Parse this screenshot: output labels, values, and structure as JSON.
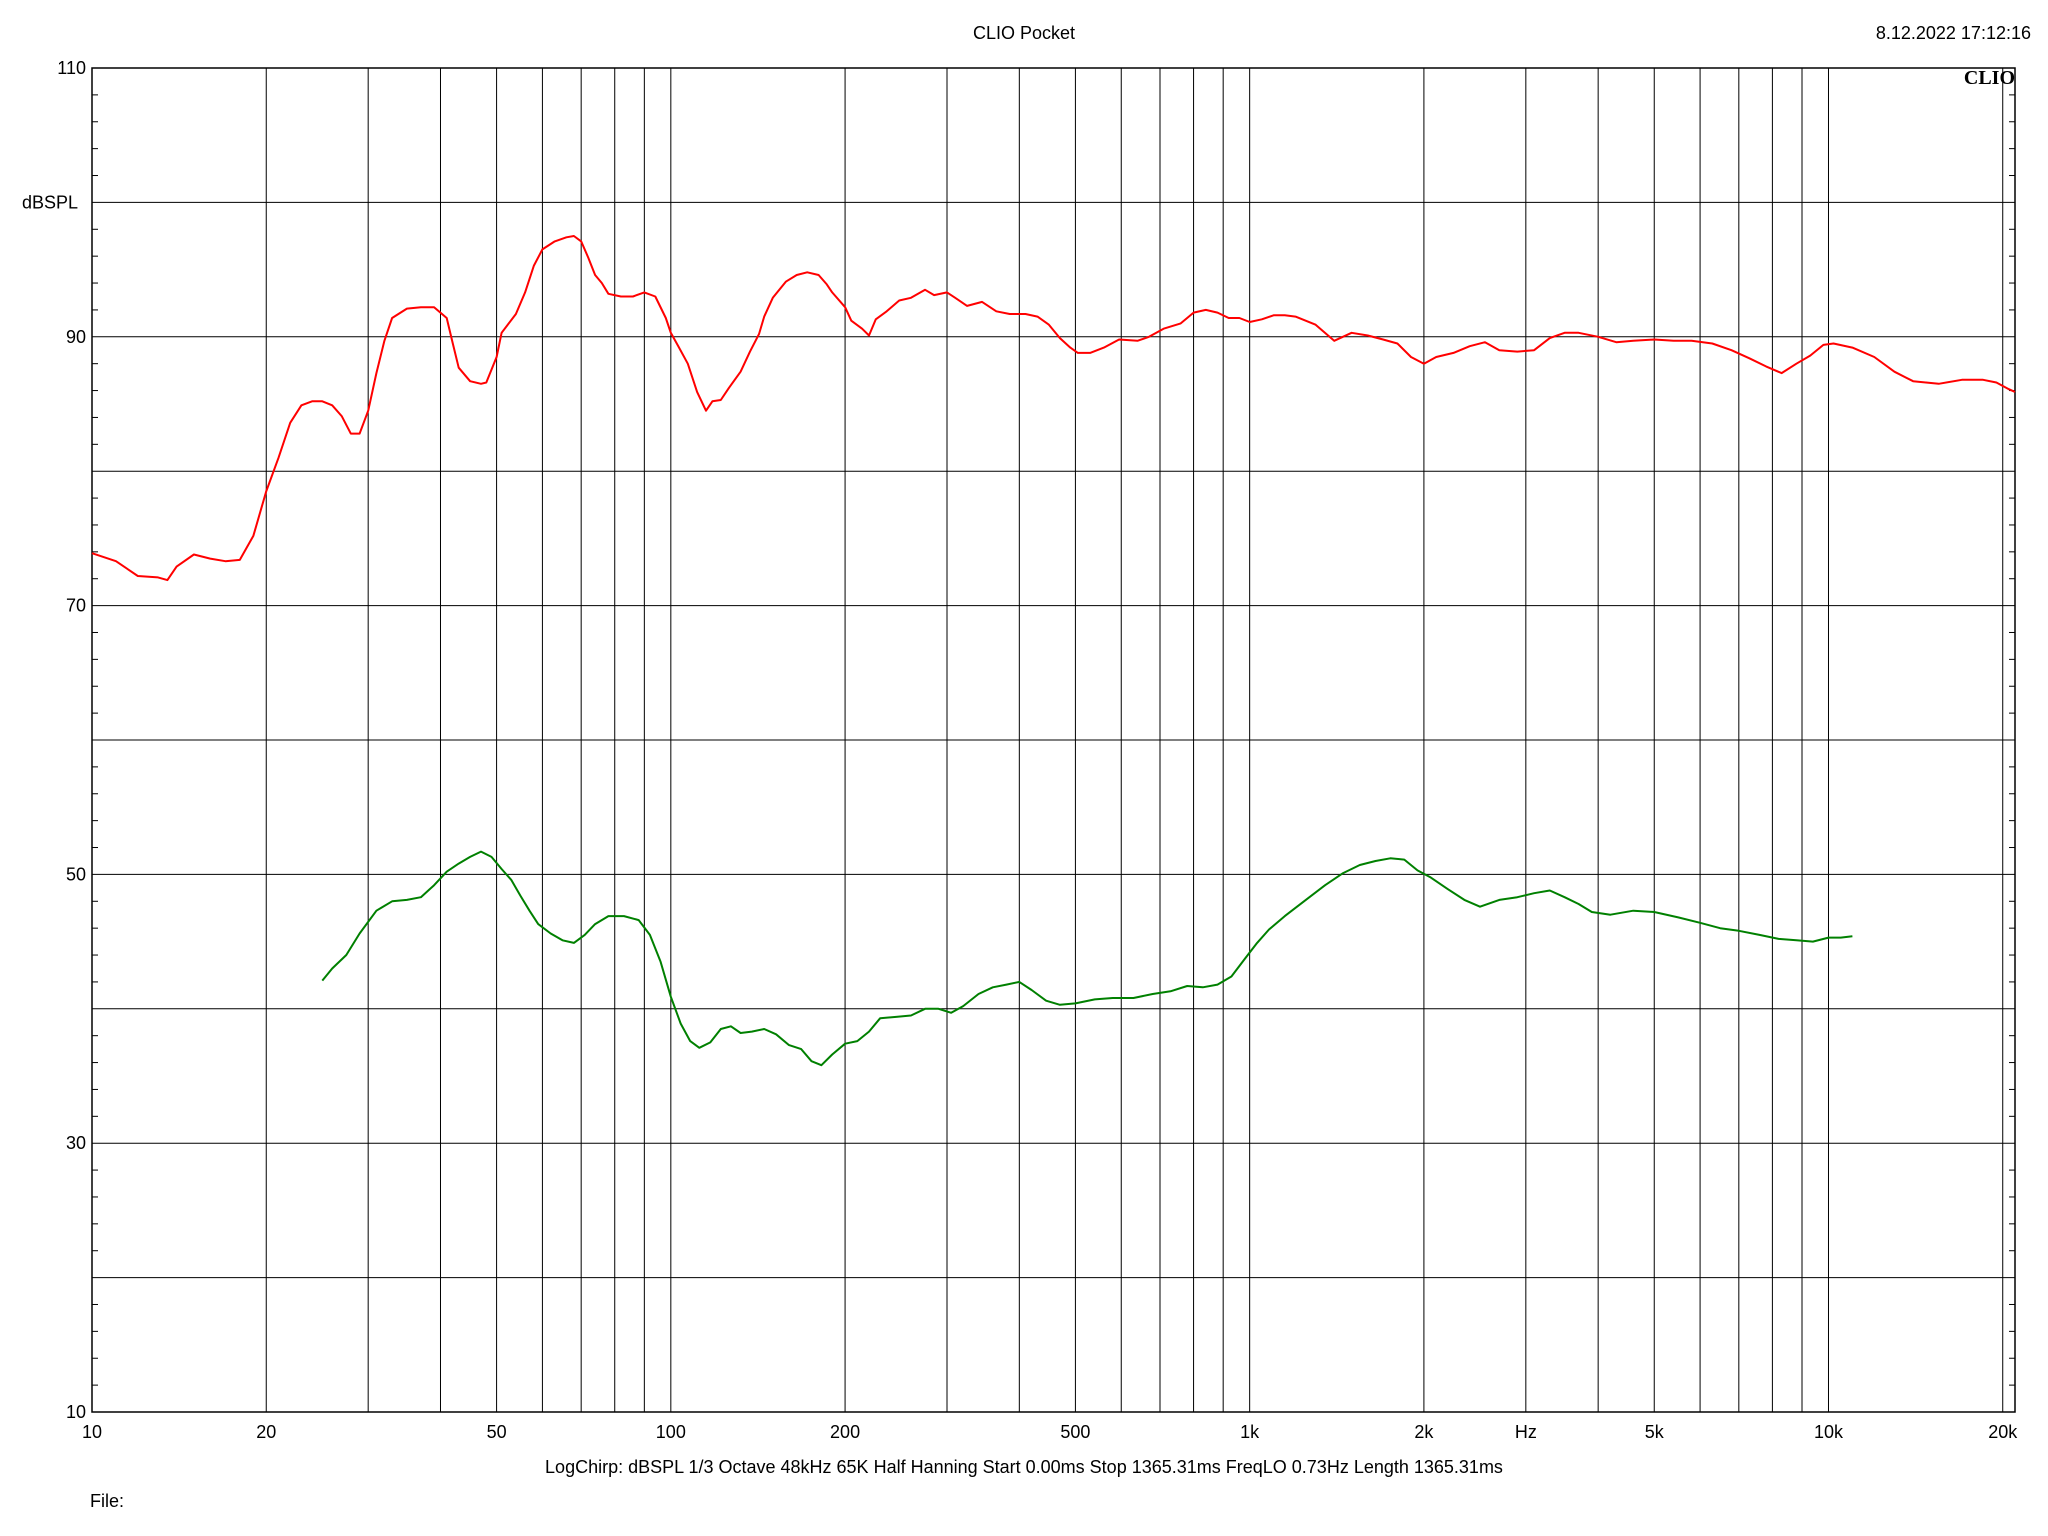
{
  "header": {
    "title": "CLIO Pocket",
    "timestamp": "8.12.2022 17:12:16"
  },
  "logo_text": "CLIO",
  "footer": {
    "params": "LogChirp:  dBSPL   1/3 Octave   48kHz   65K   Half Hanning   Start 0.00ms    Stop 1365.31ms    FreqLO 0.73Hz    Length 1365.31ms",
    "file_label": "File:"
  },
  "colors": {
    "background": "#ffffff",
    "grid": "#000000",
    "series_red": "#ff0000",
    "series_green": "#008000"
  },
  "chart_data": {
    "type": "line",
    "xscale": "log",
    "xlim": [
      10,
      21000
    ],
    "ylim": [
      10,
      110
    ],
    "ylabel": "dBSPL",
    "xlabel": "Hz",
    "grid": true,
    "y_ticks": [
      {
        "value": 110,
        "label": "110"
      },
      {
        "value": 90,
        "label": "90"
      },
      {
        "value": 70,
        "label": "70"
      },
      {
        "value": 50,
        "label": "50"
      },
      {
        "value": 30,
        "label": "30"
      },
      {
        "value": 10,
        "label": "10"
      }
    ],
    "x_ticks": [
      {
        "value": 10,
        "label": "10"
      },
      {
        "value": 20,
        "label": "20"
      },
      {
        "value": 50,
        "label": "50"
      },
      {
        "value": 100,
        "label": "100"
      },
      {
        "value": 200,
        "label": "200"
      },
      {
        "value": 500,
        "label": "500"
      },
      {
        "value": 1000,
        "label": "1k"
      },
      {
        "value": 2000,
        "label": "2k"
      },
      {
        "value": 5000,
        "label": "5k"
      },
      {
        "value": 10000,
        "label": "10k"
      },
      {
        "value": 20000,
        "label": "20k"
      }
    ],
    "series": [
      {
        "color": "#ff0000",
        "points": [
          [
            10,
            73.9
          ],
          [
            11,
            73.3
          ],
          [
            12,
            72.2
          ],
          [
            13,
            72.1
          ],
          [
            13.5,
            71.9
          ],
          [
            14,
            72.9
          ],
          [
            15,
            73.8
          ],
          [
            16,
            73.5
          ],
          [
            17,
            73.3
          ],
          [
            18,
            73.4
          ],
          [
            19,
            75.2
          ],
          [
            20,
            78.5
          ],
          [
            21,
            81.0
          ],
          [
            22,
            83.6
          ],
          [
            23,
            84.9
          ],
          [
            24,
            85.2
          ],
          [
            25,
            85.2
          ],
          [
            26,
            84.9
          ],
          [
            27,
            84.1
          ],
          [
            28,
            82.8
          ],
          [
            29,
            82.8
          ],
          [
            30,
            84.5
          ],
          [
            31,
            87.3
          ],
          [
            32,
            89.7
          ],
          [
            33,
            91.4
          ],
          [
            35,
            92.1
          ],
          [
            37,
            92.2
          ],
          [
            39,
            92.2
          ],
          [
            41,
            91.4
          ],
          [
            42,
            89.5
          ],
          [
            43,
            87.7
          ],
          [
            45,
            86.7
          ],
          [
            47,
            86.5
          ],
          [
            48,
            86.6
          ],
          [
            50,
            88.5
          ],
          [
            51,
            90.3
          ],
          [
            54,
            91.7
          ],
          [
            56,
            93.3
          ],
          [
            58,
            95.3
          ],
          [
            60,
            96.5
          ],
          [
            63,
            97.1
          ],
          [
            66,
            97.4
          ],
          [
            68,
            97.5
          ],
          [
            70,
            97.1
          ],
          [
            72,
            95.9
          ],
          [
            74,
            94.6
          ],
          [
            76,
            94.0
          ],
          [
            78,
            93.2
          ],
          [
            82,
            93.0
          ],
          [
            86,
            93.0
          ],
          [
            90,
            93.3
          ],
          [
            94,
            93.0
          ],
          [
            98,
            91.4
          ],
          [
            100,
            90.3
          ],
          [
            103,
            89.3
          ],
          [
            107,
            88.0
          ],
          [
            111,
            85.9
          ],
          [
            115,
            84.5
          ],
          [
            118,
            85.2
          ],
          [
            122,
            85.3
          ],
          [
            126,
            86.2
          ],
          [
            132,
            87.4
          ],
          [
            137,
            88.9
          ],
          [
            142,
            90.2
          ],
          [
            145,
            91.5
          ],
          [
            150,
            92.9
          ],
          [
            158,
            94.1
          ],
          [
            165,
            94.6
          ],
          [
            172,
            94.8
          ],
          [
            180,
            94.6
          ],
          [
            186,
            93.9
          ],
          [
            190,
            93.3
          ],
          [
            200,
            92.2
          ],
          [
            205,
            91.2
          ],
          [
            214,
            90.6
          ],
          [
            220,
            90.1
          ],
          [
            226,
            91.3
          ],
          [
            236,
            91.9
          ],
          [
            248,
            92.7
          ],
          [
            260,
            92.9
          ],
          [
            275,
            93.5
          ],
          [
            285,
            93.1
          ],
          [
            300,
            93.3
          ],
          [
            310,
            92.9
          ],
          [
            325,
            92.3
          ],
          [
            345,
            92.6
          ],
          [
            365,
            91.9
          ],
          [
            385,
            91.7
          ],
          [
            410,
            91.7
          ],
          [
            430,
            91.5
          ],
          [
            450,
            90.9
          ],
          [
            470,
            89.9
          ],
          [
            490,
            89.2
          ],
          [
            505,
            88.8
          ],
          [
            530,
            88.8
          ],
          [
            560,
            89.2
          ],
          [
            595,
            89.8
          ],
          [
            640,
            89.7
          ],
          [
            670,
            90.0
          ],
          [
            710,
            90.6
          ],
          [
            760,
            91.0
          ],
          [
            800,
            91.8
          ],
          [
            840,
            92.0
          ],
          [
            880,
            91.8
          ],
          [
            920,
            91.4
          ],
          [
            960,
            91.4
          ],
          [
            1000,
            91.1
          ],
          [
            1050,
            91.3
          ],
          [
            1100,
            91.6
          ],
          [
            1150,
            91.6
          ],
          [
            1200,
            91.5
          ],
          [
            1300,
            90.9
          ],
          [
            1400,
            89.7
          ],
          [
            1500,
            90.3
          ],
          [
            1600,
            90.1
          ],
          [
            1700,
            89.8
          ],
          [
            1800,
            89.5
          ],
          [
            1900,
            88.5
          ],
          [
            2000,
            88.0
          ],
          [
            2100,
            88.5
          ],
          [
            2250,
            88.8
          ],
          [
            2400,
            89.3
          ],
          [
            2550,
            89.6
          ],
          [
            2700,
            89.0
          ],
          [
            2900,
            88.9
          ],
          [
            3100,
            89.0
          ],
          [
            3300,
            89.9
          ],
          [
            3500,
            90.3
          ],
          [
            3700,
            90.3
          ],
          [
            4000,
            90.0
          ],
          [
            4300,
            89.6
          ],
          [
            4600,
            89.7
          ],
          [
            5000,
            89.8
          ],
          [
            5400,
            89.7
          ],
          [
            5800,
            89.7
          ],
          [
            6300,
            89.5
          ],
          [
            6800,
            89.0
          ],
          [
            7300,
            88.4
          ],
          [
            7800,
            87.8
          ],
          [
            8300,
            87.3
          ],
          [
            8800,
            88.0
          ],
          [
            9300,
            88.6
          ],
          [
            9800,
            89.4
          ],
          [
            10200,
            89.5
          ],
          [
            11000,
            89.2
          ],
          [
            12000,
            88.5
          ],
          [
            13000,
            87.4
          ],
          [
            14000,
            86.7
          ],
          [
            15500,
            86.5
          ],
          [
            17000,
            86.8
          ],
          [
            18500,
            86.8
          ],
          [
            19500,
            86.6
          ],
          [
            20500,
            86.1
          ],
          [
            21000,
            85.9
          ]
        ]
      },
      {
        "color": "#008000",
        "points": [
          [
            25,
            42.1
          ],
          [
            26,
            43.0
          ],
          [
            27.5,
            44.0
          ],
          [
            29,
            45.6
          ],
          [
            31,
            47.3
          ],
          [
            33,
            48.0
          ],
          [
            35,
            48.1
          ],
          [
            37,
            48.3
          ],
          [
            39,
            49.2
          ],
          [
            41,
            50.2
          ],
          [
            43,
            50.8
          ],
          [
            45,
            51.3
          ],
          [
            47,
            51.7
          ],
          [
            49,
            51.3
          ],
          [
            51,
            50.4
          ],
          [
            53,
            49.6
          ],
          [
            55,
            48.4
          ],
          [
            57,
            47.3
          ],
          [
            59,
            46.3
          ],
          [
            62,
            45.6
          ],
          [
            65,
            45.1
          ],
          [
            68,
            44.9
          ],
          [
            71,
            45.5
          ],
          [
            74,
            46.3
          ],
          [
            78,
            46.9
          ],
          [
            83,
            46.9
          ],
          [
            88,
            46.6
          ],
          [
            92,
            45.5
          ],
          [
            96,
            43.5
          ],
          [
            100,
            40.9
          ],
          [
            104,
            38.9
          ],
          [
            108,
            37.6
          ],
          [
            112,
            37.1
          ],
          [
            117,
            37.5
          ],
          [
            122,
            38.5
          ],
          [
            127,
            38.7
          ],
          [
            132,
            38.2
          ],
          [
            138,
            38.3
          ],
          [
            145,
            38.5
          ],
          [
            152,
            38.1
          ],
          [
            160,
            37.3
          ],
          [
            168,
            37.0
          ],
          [
            175,
            36.1
          ],
          [
            182,
            35.8
          ],
          [
            190,
            36.6
          ],
          [
            200,
            37.4
          ],
          [
            210,
            37.6
          ],
          [
            220,
            38.3
          ],
          [
            230,
            39.3
          ],
          [
            245,
            39.4
          ],
          [
            260,
            39.5
          ],
          [
            275,
            40.0
          ],
          [
            290,
            40.0
          ],
          [
            305,
            39.7
          ],
          [
            320,
            40.2
          ],
          [
            340,
            41.1
          ],
          [
            360,
            41.6
          ],
          [
            380,
            41.8
          ],
          [
            400,
            42.0
          ],
          [
            420,
            41.4
          ],
          [
            445,
            40.6
          ],
          [
            470,
            40.3
          ],
          [
            500,
            40.4
          ],
          [
            540,
            40.7
          ],
          [
            580,
            40.8
          ],
          [
            630,
            40.8
          ],
          [
            680,
            41.1
          ],
          [
            730,
            41.3
          ],
          [
            780,
            41.7
          ],
          [
            830,
            41.6
          ],
          [
            880,
            41.8
          ],
          [
            930,
            42.4
          ],
          [
            980,
            43.7
          ],
          [
            1030,
            44.9
          ],
          [
            1080,
            45.9
          ],
          [
            1150,
            46.9
          ],
          [
            1250,
            48.1
          ],
          [
            1350,
            49.2
          ],
          [
            1450,
            50.1
          ],
          [
            1550,
            50.7
          ],
          [
            1650,
            51.0
          ],
          [
            1750,
            51.2
          ],
          [
            1850,
            51.1
          ],
          [
            1950,
            50.3
          ],
          [
            2050,
            49.8
          ],
          [
            2200,
            48.9
          ],
          [
            2350,
            48.1
          ],
          [
            2500,
            47.6
          ],
          [
            2700,
            48.1
          ],
          [
            2900,
            48.3
          ],
          [
            3100,
            48.6
          ],
          [
            3300,
            48.8
          ],
          [
            3500,
            48.3
          ],
          [
            3700,
            47.8
          ],
          [
            3900,
            47.2
          ],
          [
            4200,
            47.0
          ],
          [
            4600,
            47.3
          ],
          [
            5000,
            47.2
          ],
          [
            5500,
            46.8
          ],
          [
            6000,
            46.4
          ],
          [
            6500,
            46.0
          ],
          [
            7000,
            45.8
          ],
          [
            7600,
            45.5
          ],
          [
            8200,
            45.2
          ],
          [
            8800,
            45.1
          ],
          [
            9400,
            45.0
          ],
          [
            10000,
            45.3
          ],
          [
            10500,
            45.3
          ],
          [
            11000,
            45.4
          ]
        ]
      }
    ]
  }
}
